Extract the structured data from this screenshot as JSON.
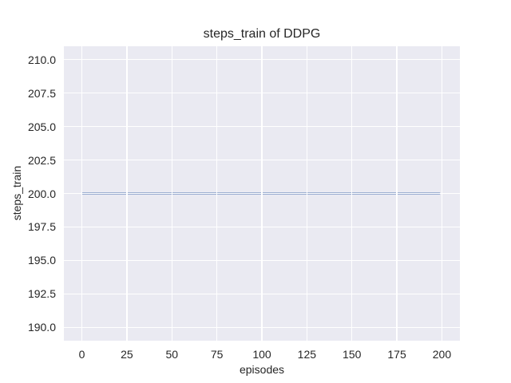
{
  "chart_data": {
    "type": "line",
    "title": "steps_train of DDPG",
    "xlabel": "episodes",
    "ylabel": "steps_train",
    "x_ticks": {
      "values": [
        0,
        25,
        50,
        75,
        100,
        125,
        150,
        175,
        200
      ],
      "labels": [
        "0",
        "25",
        "50",
        "75",
        "100",
        "125",
        "150",
        "175",
        "200"
      ]
    },
    "y_ticks": {
      "values": [
        190.0,
        192.5,
        195.0,
        197.5,
        200.0,
        202.5,
        205.0,
        207.5,
        210.0
      ],
      "labels": [
        "190.0",
        "192.5",
        "195.0",
        "197.5",
        "200.0",
        "202.5",
        "205.0",
        "207.5",
        "210.0"
      ]
    },
    "xlim": [
      -10,
      210
    ],
    "ylim": [
      189,
      211
    ],
    "grid": true,
    "legend": "none",
    "series": [
      {
        "name": "steps_train",
        "x": [
          0,
          199
        ],
        "y": [
          200,
          200
        ],
        "color": "#4c72b0",
        "linewidth": 2
      }
    ],
    "plot_background": "#eaeaf2",
    "grid_color": "#ffffff",
    "text_color": "#262626",
    "figure_background": "#ffffff"
  }
}
